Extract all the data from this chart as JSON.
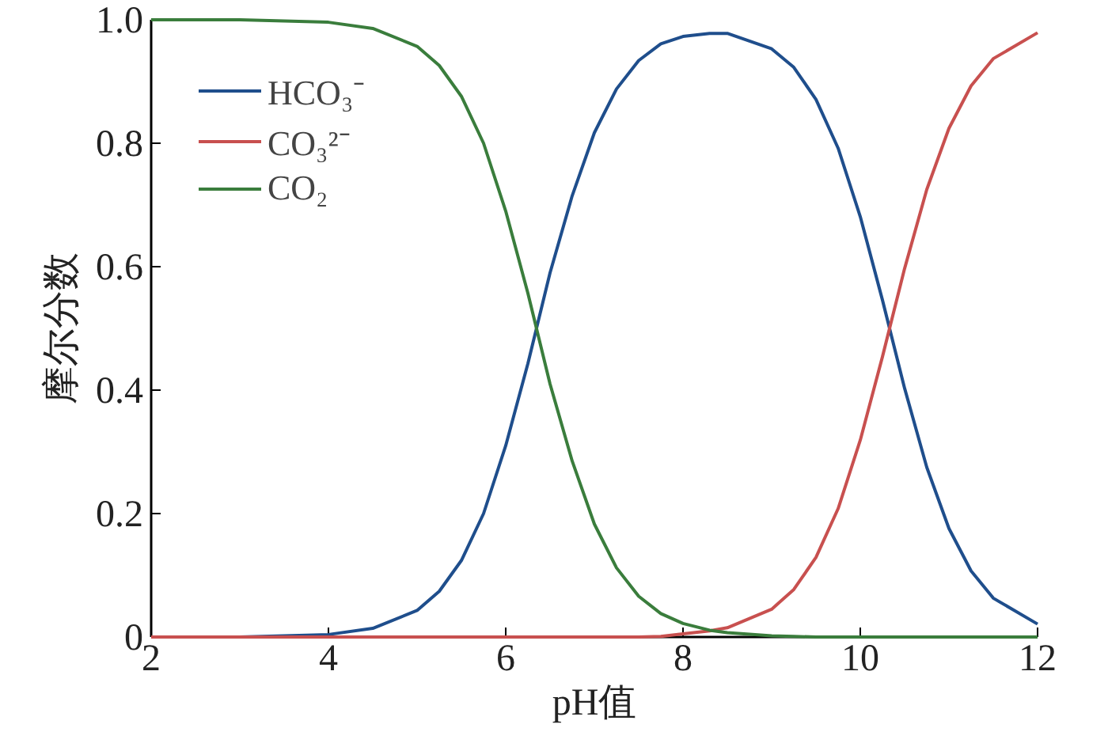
{
  "chart_data": {
    "type": "line",
    "xlabel": "pH值",
    "ylabel": "摩尔分数",
    "x": [
      2,
      3,
      4,
      4.5,
      5,
      5.25,
      5.5,
      5.75,
      6,
      6.25,
      6.5,
      6.75,
      7,
      7.25,
      7.5,
      7.75,
      8,
      8.3,
      8.5,
      9,
      9.25,
      9.5,
      9.75,
      10,
      10.25,
      10.5,
      10.75,
      11,
      11.25,
      11.5,
      12
    ],
    "series": [
      {
        "name": "HCO₃⁻",
        "color": "#1f4e8c",
        "values": [
          0,
          0,
          0.004,
          0.014,
          0.043,
          0.074,
          0.124,
          0.2,
          0.31,
          0.443,
          0.59,
          0.715,
          0.817,
          0.888,
          0.934,
          0.961,
          0.973,
          0.978,
          0.978,
          0.953,
          0.923,
          0.871,
          0.792,
          0.681,
          0.546,
          0.403,
          0.275,
          0.176,
          0.107,
          0.063,
          0.021
        ]
      },
      {
        "name": "CO₃²⁻",
        "color": "#c8504f",
        "values": [
          0,
          0,
          0,
          0,
          0,
          0,
          0,
          0,
          0,
          0,
          0,
          0,
          0,
          0,
          0,
          0.001,
          0.005,
          0.01,
          0.015,
          0.045,
          0.077,
          0.129,
          0.208,
          0.319,
          0.454,
          0.597,
          0.725,
          0.824,
          0.893,
          0.937,
          0.979
        ]
      },
      {
        "name": "CO₂",
        "color": "#3a7d3c",
        "values": [
          1,
          1,
          0.996,
          0.986,
          0.957,
          0.926,
          0.876,
          0.8,
          0.69,
          0.557,
          0.41,
          0.285,
          0.183,
          0.112,
          0.066,
          0.038,
          0.022,
          0.011,
          0.007,
          0.002,
          0.001,
          0,
          0,
          0,
          0,
          0,
          0,
          0,
          0,
          0,
          0
        ]
      }
    ],
    "xlim": [
      2,
      12
    ],
    "xticks": [
      2,
      4,
      6,
      8,
      10,
      12
    ],
    "ylim": [
      0,
      1
    ],
    "yticks": [
      {
        "value": 0,
        "label": "0"
      },
      0.2,
      0.4,
      0.6,
      0.8,
      {
        "value": 1,
        "label": "1.0"
      }
    ],
    "grid": false,
    "legend": "top left",
    "marker": "none",
    "line_style": "solid"
  }
}
